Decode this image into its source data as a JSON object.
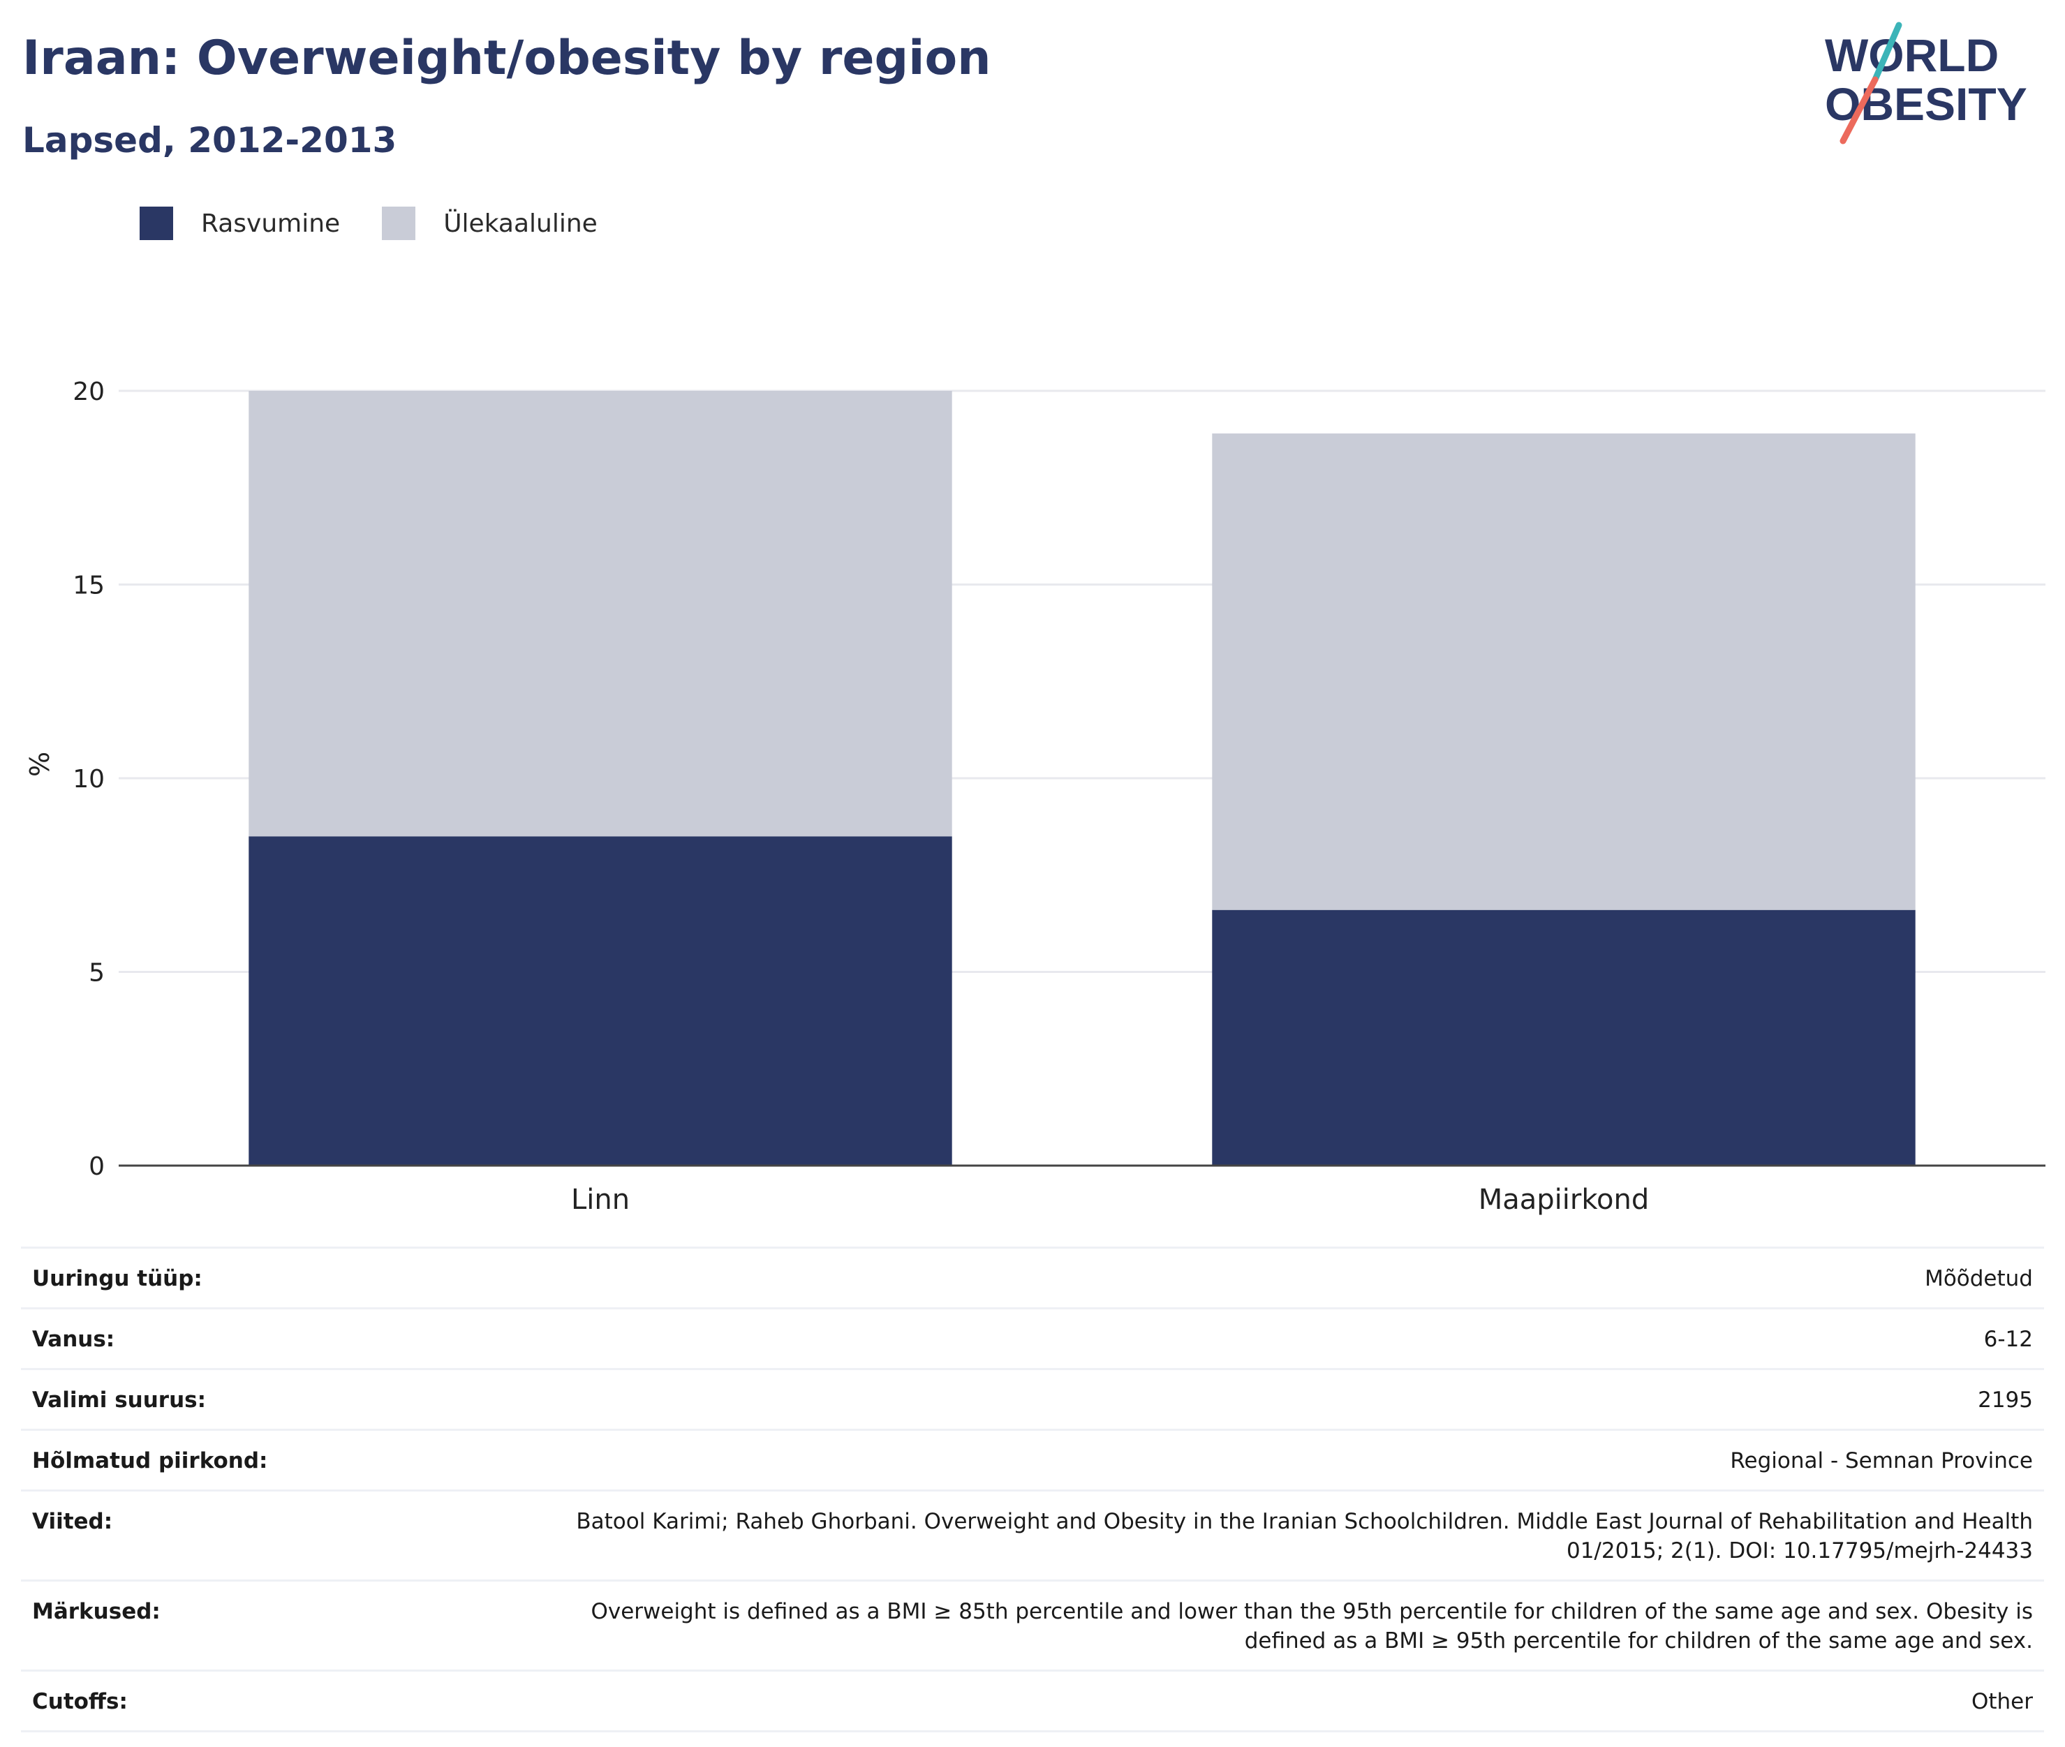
{
  "header": {
    "title": "Iraan: Overweight/obesity by region",
    "subtitle": "Lapsed, 2012-2013"
  },
  "logo": {
    "line1": "WORLD",
    "line2": "OBESITY",
    "icon": "world-obesity-logo"
  },
  "colors": {
    "obesity": "#2a3764",
    "overweight": "#c9ccd7",
    "title": "#2a3764",
    "grid": "#e8e9ee",
    "axis": "#444444"
  },
  "chart_data": {
    "type": "bar",
    "stacked": true,
    "categories": [
      "Linn",
      "Maapiirkond"
    ],
    "series": [
      {
        "name": "Rasvumine",
        "values": [
          8.5,
          6.6
        ],
        "color": "#2a3764"
      },
      {
        "name": "Ülekaaluline",
        "values": [
          11.5,
          12.3
        ],
        "color": "#c9ccd7"
      }
    ],
    "totals": [
      20.0,
      18.9
    ],
    "ylabel": "%",
    "ylim": [
      0,
      20
    ],
    "yticks": [
      0,
      5,
      10,
      15,
      20
    ],
    "grid": true,
    "legend": "top-left"
  },
  "info": [
    {
      "key": "Uuringu tüüp:",
      "value": "Mõõdetud"
    },
    {
      "key": "Vanus:",
      "value": "6-12"
    },
    {
      "key": "Valimi suurus:",
      "value": "2195"
    },
    {
      "key": "Hõlmatud piirkond:",
      "value": "Regional - Semnan Province"
    },
    {
      "key": "Viited:",
      "value": "Batool Karimi; Raheb Ghorbani. Overweight and Obesity in the Iranian Schoolchildren. Middle East Journal of Rehabilitation and Health 01/2015; 2(1). DOI: 10.17795/mejrh-24433"
    },
    {
      "key": "Märkused:",
      "value": "Overweight is defined as a BMI ≥ 85th percentile and lower than the 95th percentile for children of the same age and sex. Obesity is defined as a BMI ≥ 95th percentile for children of the same age and sex."
    },
    {
      "key": "Cutoffs:",
      "value": "Other"
    }
  ]
}
